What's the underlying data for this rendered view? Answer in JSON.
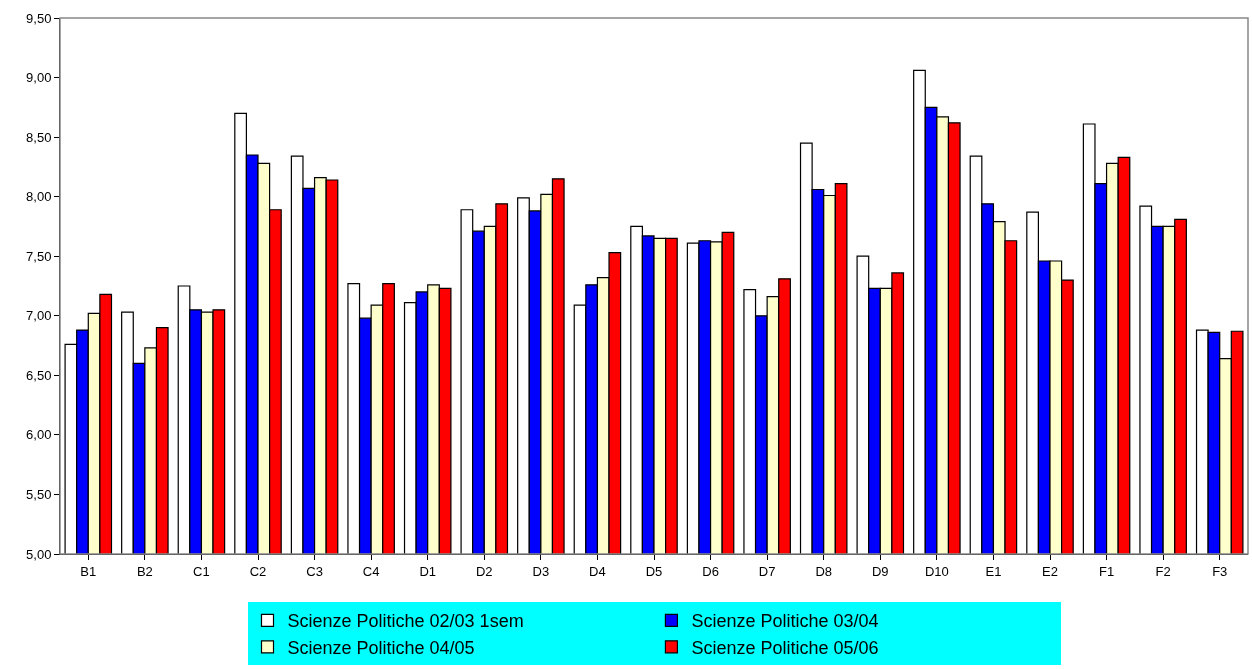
{
  "chart_data": {
    "type": "bar",
    "categories": [
      "B1",
      "B2",
      "C1",
      "C2",
      "C3",
      "C4",
      "D1",
      "D2",
      "D3",
      "D4",
      "D5",
      "D6",
      "D7",
      "D8",
      "D9",
      "D10",
      "E1",
      "E2",
      "F1",
      "F2",
      "F3"
    ],
    "series": [
      {
        "name": "Scienze Politiche 02/03 1sem",
        "color": "#ffffff",
        "values": [
          6.76,
          7.03,
          7.25,
          8.7,
          8.34,
          7.27,
          7.11,
          7.89,
          7.99,
          7.09,
          7.75,
          7.61,
          7.22,
          8.45,
          7.5,
          9.06,
          8.34,
          7.87,
          8.61,
          7.92,
          6.88
        ]
      },
      {
        "name": "Scienze Politiche 03/04",
        "color": "#0000ff",
        "values": [
          6.88,
          6.6,
          7.05,
          8.35,
          8.07,
          6.98,
          7.2,
          7.71,
          7.88,
          7.26,
          7.67,
          7.63,
          7.0,
          8.06,
          7.23,
          8.75,
          7.94,
          7.46,
          8.11,
          7.75,
          6.86
        ]
      },
      {
        "name": "Scienze Politiche 04/05",
        "color": "#ffffcc",
        "values": [
          7.02,
          6.73,
          7.03,
          8.28,
          8.16,
          7.09,
          7.26,
          7.75,
          8.02,
          7.32,
          7.65,
          7.62,
          7.16,
          8.01,
          7.23,
          8.67,
          7.79,
          7.46,
          8.28,
          7.75,
          6.64
        ]
      },
      {
        "name": "Scienze Politiche 05/06",
        "color": "#ff0000",
        "values": [
          7.18,
          6.9,
          7.05,
          7.89,
          8.14,
          7.27,
          7.23,
          7.94,
          8.15,
          7.53,
          7.65,
          7.7,
          7.31,
          8.11,
          7.36,
          8.62,
          7.63,
          7.3,
          8.33,
          7.81,
          6.87
        ]
      }
    ],
    "ylim": [
      5,
      9.5
    ],
    "yticks": [
      {
        "value": 5,
        "label": "5,00"
      },
      {
        "value": 5.5,
        "label": "5,50"
      },
      {
        "value": 6,
        "label": "6,00"
      },
      {
        "value": 6.5,
        "label": "6,50"
      },
      {
        "value": 7,
        "label": "7,00"
      },
      {
        "value": 7.5,
        "label": "7,50"
      },
      {
        "value": 8,
        "label": "8,00"
      },
      {
        "value": 8.5,
        "label": "8,50"
      },
      {
        "value": 9,
        "label": "9,00"
      },
      {
        "value": 9.5,
        "label": "9,50"
      }
    ],
    "grid": false,
    "legend": "bottom"
  }
}
